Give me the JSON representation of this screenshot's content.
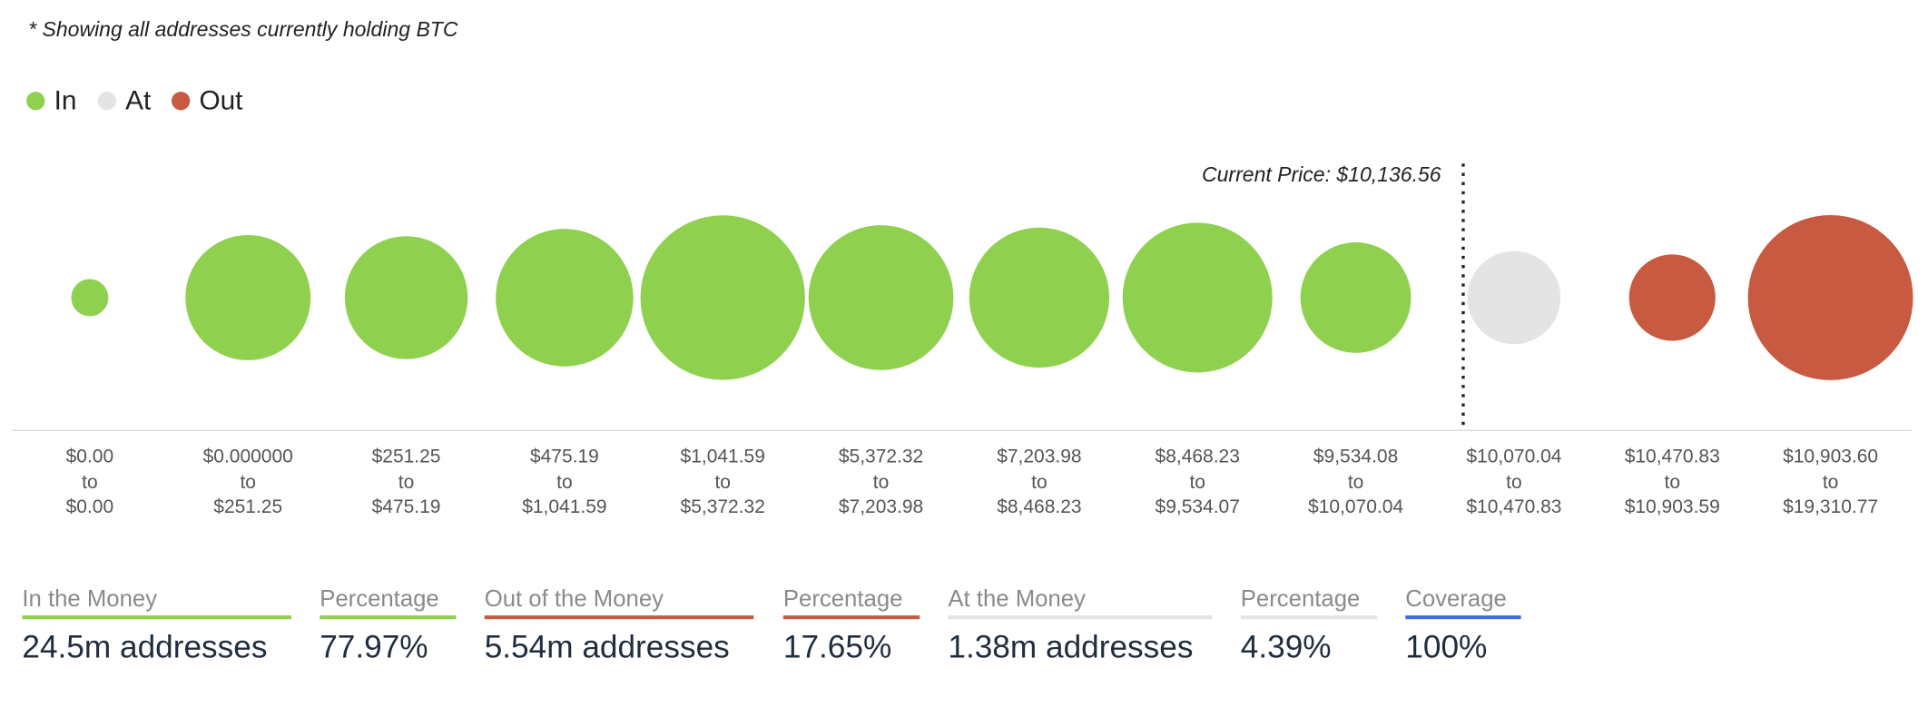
{
  "chart_data": {
    "type": "bubble",
    "note": "* Showing all addresses currently holding BTC",
    "annotation": "Current Price: $10,136.56",
    "range_separator": "to",
    "categories": [
      {
        "from": "$0.00",
        "to": "$0.00"
      },
      {
        "from": "$0.000000",
        "to": "$251.25"
      },
      {
        "from": "$251.25",
        "to": "$475.19"
      },
      {
        "from": "$475.19",
        "to": "$1,041.59"
      },
      {
        "from": "$1,041.59",
        "to": "$5,372.32"
      },
      {
        "from": "$5,372.32",
        "to": "$7,203.98"
      },
      {
        "from": "$7,203.98",
        "to": "$8,468.23"
      },
      {
        "from": "$8,468.23",
        "to": "$9,534.07"
      },
      {
        "from": "$9,534.08",
        "to": "$10,070.04"
      },
      {
        "from": "$10,070.04",
        "to": "$10,470.83"
      },
      {
        "from": "$10,470.83",
        "to": "$10,903.59"
      },
      {
        "from": "$10,903.60",
        "to": "$19,310.77"
      }
    ],
    "series": [
      {
        "name": "In",
        "color": "#8fd14f",
        "values": [
          0.22,
          2.5,
          2.41,
          3.02,
          4.32,
          3.35,
          3.13,
          3.58,
          1.95,
          null,
          null,
          null
        ]
      },
      {
        "name": "At",
        "color": "#e4e4e4",
        "values": [
          null,
          null,
          null,
          null,
          null,
          null,
          null,
          null,
          null,
          1.38,
          null,
          null
        ]
      },
      {
        "name": "Out",
        "color": "#c85a41",
        "values": [
          null,
          null,
          null,
          null,
          null,
          null,
          null,
          null,
          null,
          null,
          1.19,
          4.35
        ]
      }
    ]
  },
  "summary": [
    {
      "label": "In the Money",
      "value": "24.5m addresses",
      "color": "#8fd14f"
    },
    {
      "label": "Percentage",
      "value": "77.97%",
      "color": "#8fd14f"
    },
    {
      "label": "Out of the Money",
      "value": "5.54m addresses",
      "color": "#c85a41"
    },
    {
      "label": "Percentage",
      "value": "17.65%",
      "color": "#c85a41"
    },
    {
      "label": "At the Money",
      "value": "1.38m addresses",
      "color": "#e4e4e4"
    },
    {
      "label": "Percentage",
      "value": "4.39%",
      "color": "#e4e4e4"
    },
    {
      "label": "Coverage",
      "value": "100%",
      "color": "#3a6ee8"
    }
  ]
}
